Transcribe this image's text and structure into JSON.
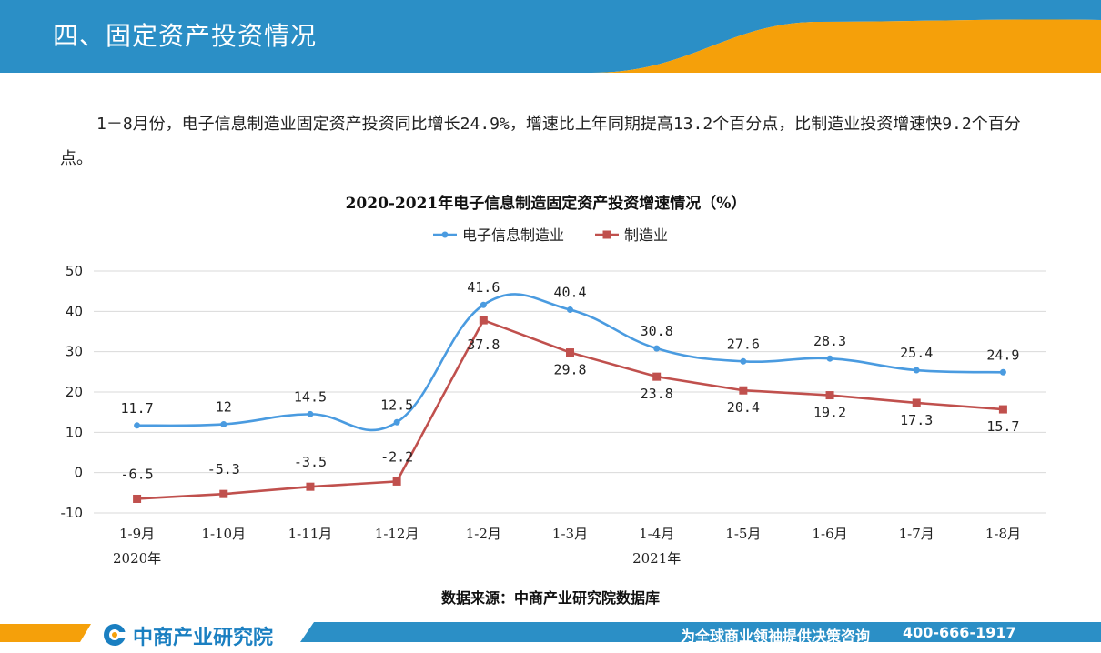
{
  "header": {
    "title": "四、固定资产投资情况"
  },
  "summary": {
    "text": "1－8月份，电子信息制造业固定资产投资同比增长24.9%，增速比上年同期提高13.2个百分点，比制造业投资增速快9.2个百分点。"
  },
  "colors": {
    "header_blue": "#2b8fc6",
    "accent_orange": "#f5a00a",
    "series_blue": "#4a9be0",
    "series_red": "#c0504d"
  },
  "chart_data": {
    "type": "line",
    "title": "2020-2021年电子信息制造固定资产投资增速情况（%）",
    "categories": [
      "1-9月",
      "1-10月",
      "1-11月",
      "1-12月",
      "1-2月",
      "1-3月",
      "1-4月",
      "1-5月",
      "1-6月",
      "1-7月",
      "1-8月"
    ],
    "groups": [
      {
        "label": "2020年",
        "index": 0
      },
      {
        "label": "2021年",
        "index": 6
      }
    ],
    "series": [
      {
        "name": "电子信息制造业",
        "color": "#4a9be0",
        "marker": "circle",
        "smooth": true,
        "values": [
          11.7,
          12,
          14.5,
          12.5,
          41.6,
          40.4,
          30.8,
          27.6,
          28.3,
          25.4,
          24.9
        ],
        "labels": [
          "11.7",
          "12",
          "14.5",
          "12.5",
          "41.6",
          "40.4",
          "30.8",
          "27.6",
          "28.3",
          "25.4",
          "24.9"
        ]
      },
      {
        "name": "制造业",
        "color": "#c0504d",
        "marker": "square",
        "smooth": false,
        "values": [
          -6.5,
          -5.3,
          -3.5,
          -2.2,
          37.8,
          29.8,
          23.8,
          20.4,
          19.2,
          17.3,
          15.7
        ],
        "labels": [
          "-6.5",
          "-5.3",
          "-3.5",
          "-2.2",
          "37.8",
          "29.8",
          "23.8",
          "20.4",
          "19.2",
          "17.3",
          "15.7"
        ]
      }
    ],
    "yticks": [
      "50",
      "40",
      "30",
      "20",
      "10",
      "0",
      "-10"
    ],
    "ylim": [
      -10,
      50
    ],
    "grid": true,
    "legend": "top"
  },
  "source": {
    "text": "数据来源：中商产业研究院数据库"
  },
  "footer": {
    "logo": "中商产业研究院",
    "slogan": "为全球商业领袖提供决策咨询",
    "phone": "400-666-1917"
  }
}
